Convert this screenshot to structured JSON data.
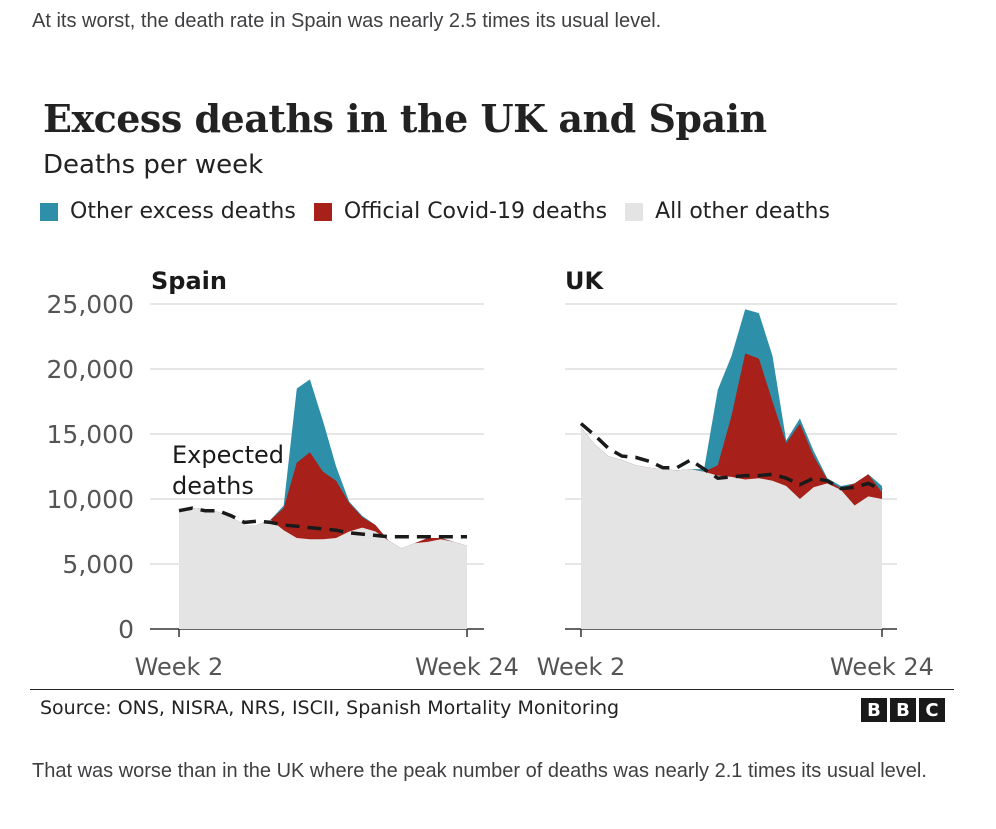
{
  "article": {
    "intro": "At its worst, the death rate in Spain was nearly 2.5 times its usual level.",
    "outro": "That was worse than in the UK where the peak number of deaths was nearly 2.1 times its usual level."
  },
  "chart_data": {
    "type": "area",
    "title": "Excess deaths in the UK and Spain",
    "subtitle": "Deaths per week",
    "legend": [
      {
        "label": "Other excess deaths",
        "color": "#2e8fa8"
      },
      {
        "label": "Official Covid-19 deaths",
        "color": "#a8201a"
      },
      {
        "label": "All other deaths",
        "color": "#e4e4e4"
      }
    ],
    "ylim": [
      0,
      25000
    ],
    "yticks": [
      "0",
      "5,000",
      "10,000",
      "15,000",
      "20,000",
      "25,000"
    ],
    "yticks_values": [
      0,
      5000,
      10000,
      15000,
      20000,
      25000
    ],
    "x_start_label": "Week 2",
    "x_end_label": "Week 24",
    "annotation": "Expected deaths",
    "panels": [
      {
        "name": "Spain",
        "weeks": [
          2,
          3,
          4,
          5,
          6,
          7,
          8,
          9,
          10,
          11,
          12,
          13,
          14,
          15,
          16,
          17,
          18,
          19,
          20,
          21,
          22,
          23,
          24
        ],
        "all_other": [
          9100,
          9300,
          9200,
          9000,
          8600,
          8000,
          8000,
          8400,
          7600,
          7000,
          6900,
          6900,
          7000,
          7500,
          7800,
          7500,
          6800,
          6200,
          6600,
          6700,
          6900,
          6700,
          6400
        ],
        "total_deaths": [
          9100,
          9300,
          9200,
          9000,
          8600,
          8000,
          8000,
          8400,
          9500,
          18500,
          19200,
          16000,
          12500,
          9800,
          8700,
          8000,
          6800,
          6200,
          6600,
          7000,
          7000,
          6700,
          6400
        ],
        "covid_top": [
          9100,
          9300,
          9200,
          9000,
          8600,
          8000,
          8000,
          8400,
          9300,
          12800,
          13600,
          12100,
          11400,
          9700,
          8600,
          8000,
          6800,
          6200,
          6600,
          7000,
          7000,
          6700,
          6400
        ],
        "expected": [
          9100,
          9300,
          9100,
          9100,
          8700,
          8200,
          8300,
          8200,
          8000,
          7900,
          7800,
          7700,
          7600,
          7400,
          7300,
          7200,
          7100,
          7100,
          7100,
          7100,
          7100,
          7100,
          7100
        ]
      },
      {
        "name": "UK",
        "weeks": [
          2,
          3,
          4,
          5,
          6,
          7,
          8,
          9,
          10,
          11,
          12,
          13,
          14,
          15,
          16,
          17,
          18,
          19,
          20,
          21,
          22,
          23,
          24
        ],
        "all_other": [
          15500,
          14200,
          13300,
          13000,
          12600,
          12400,
          12300,
          12200,
          12300,
          12100,
          11800,
          11700,
          11500,
          11600,
          11400,
          11000,
          10000,
          10900,
          11200,
          10700,
          9500,
          10200,
          10000
        ],
        "total_deaths": [
          15500,
          14200,
          13300,
          13000,
          12600,
          12400,
          12300,
          12200,
          12300,
          12300,
          18400,
          21000,
          24600,
          24300,
          21000,
          14500,
          16200,
          13700,
          11600,
          11000,
          11200,
          11900,
          11000
        ],
        "covid_top": [
          15500,
          14200,
          13300,
          13000,
          12600,
          12400,
          12300,
          12200,
          12300,
          12100,
          12600,
          16400,
          21200,
          20800,
          17500,
          14300,
          15800,
          13300,
          11500,
          10800,
          11200,
          11900,
          10500
        ],
        "expected": [
          15800,
          14900,
          13900,
          13300,
          13200,
          12900,
          12400,
          12400,
          13000,
          12300,
          11600,
          11700,
          11800,
          11800,
          11900,
          11600,
          11100,
          11600,
          11400,
          10800,
          10900,
          11200,
          10700
        ]
      }
    ]
  },
  "footer": {
    "source": "Source: ONS, NISRA, NRS, ISCII, Spanish Mortality Monitoring",
    "logo": [
      "B",
      "B",
      "C"
    ]
  }
}
